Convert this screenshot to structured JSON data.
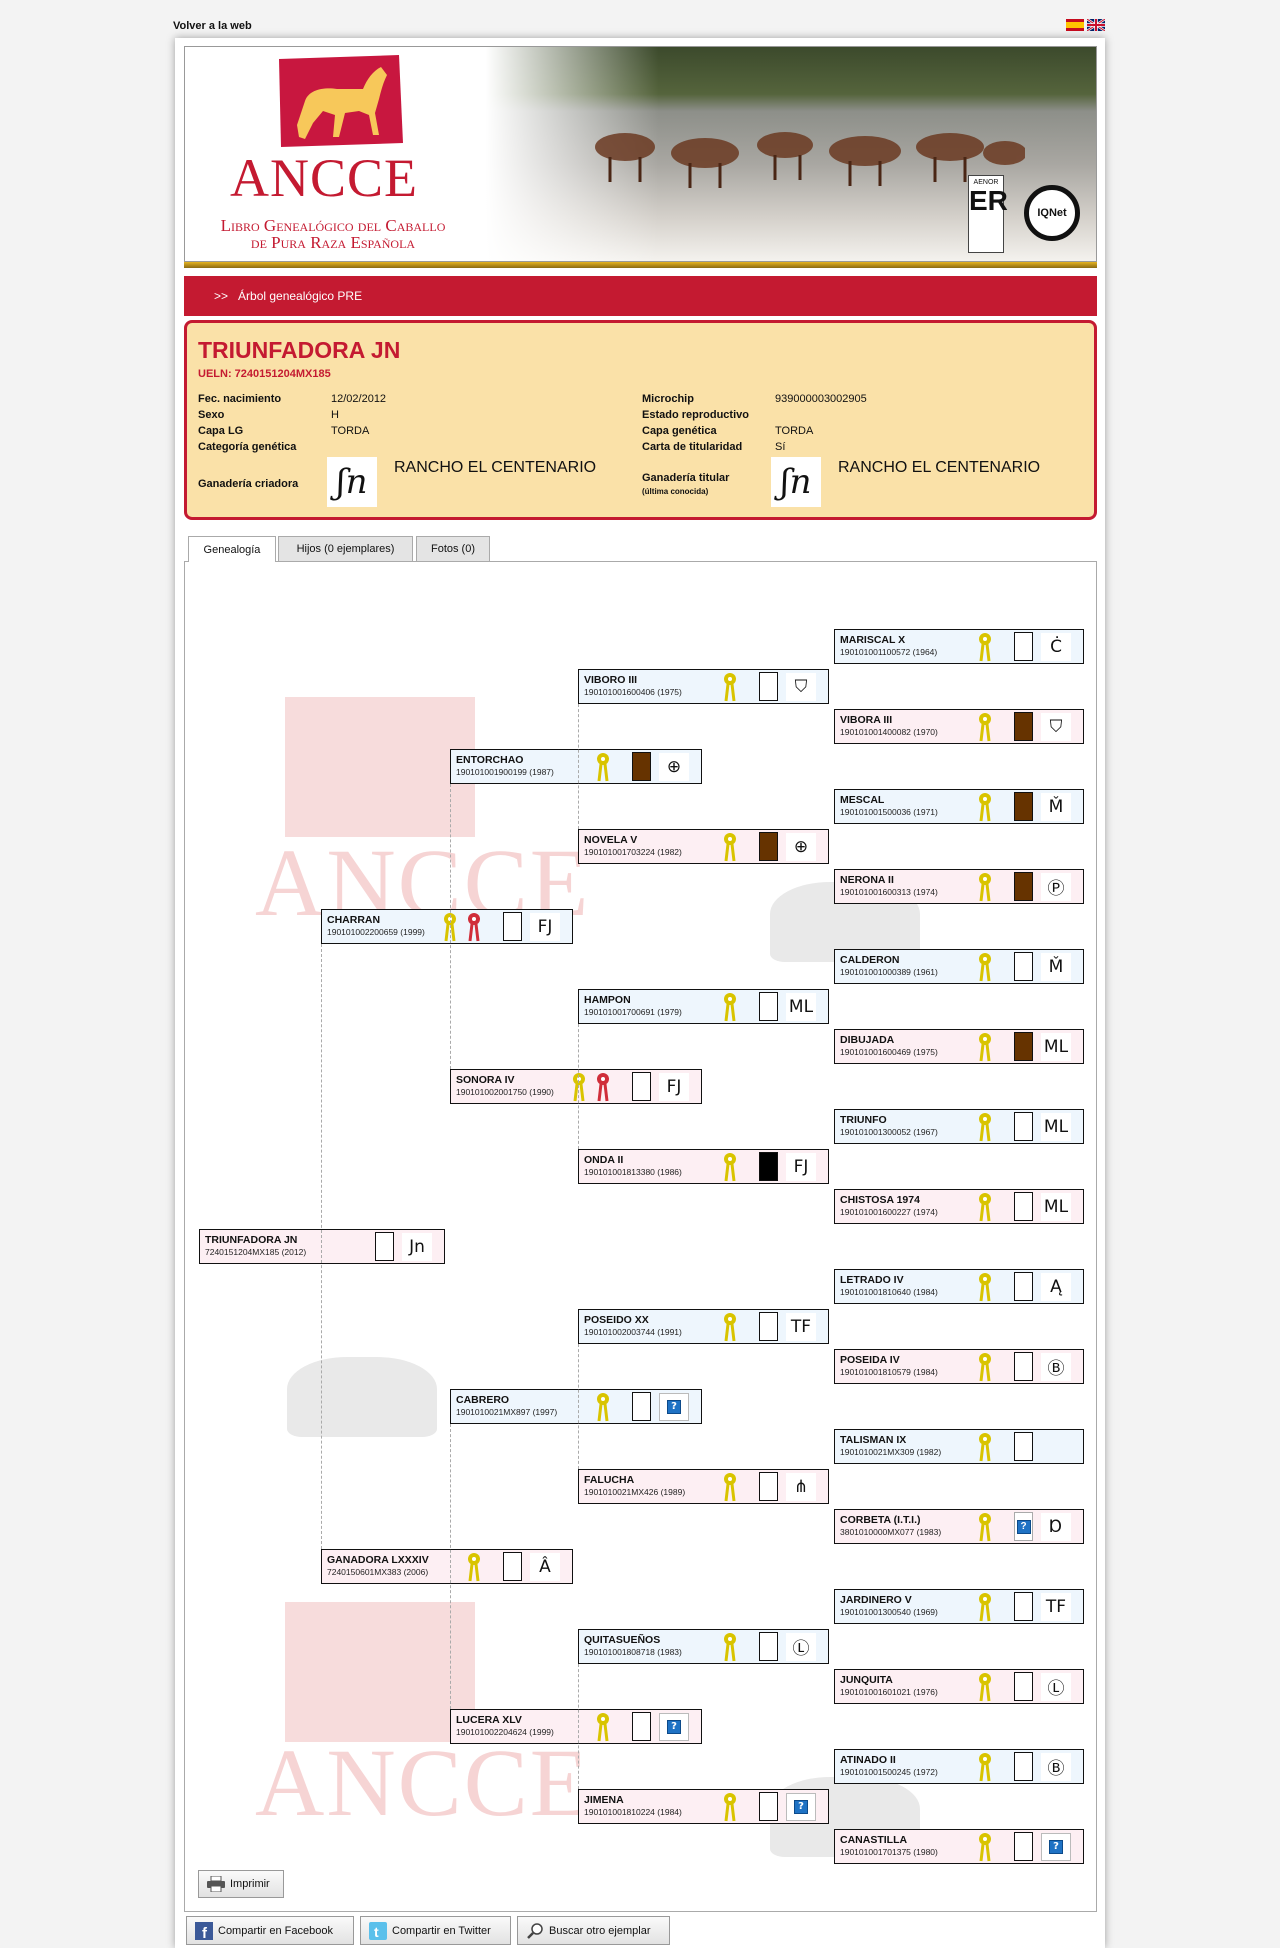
{
  "top": {
    "back_link": "Volver a la web",
    "languages": [
      "es-flag-icon",
      "uk-flag-icon"
    ]
  },
  "banner": {
    "logo_text": "ANCCE",
    "subtitle_line1": "Libro Genealógico del Caballo",
    "subtitle_line2": "de Pura Raza Española",
    "cert1": "AENOR",
    "cert2": "IQNet",
    "brand_color": "#c41a31"
  },
  "breadcrumb": {
    "sep": ">>",
    "label": "Árbol genealógico PRE"
  },
  "horse": {
    "name": "TRIUNFADORA JN",
    "ueln": "UELN: 7240151204MX185",
    "fields_left": [
      {
        "label": "Fec. nacimiento",
        "value": "12/02/2012"
      },
      {
        "label": "Sexo",
        "value": "H"
      },
      {
        "label": "Capa LG",
        "value": "TORDA"
      },
      {
        "label": "Categoría genética",
        "value": ""
      }
    ],
    "fields_right": [
      {
        "label": "Microchip",
        "value": "939000003002905"
      },
      {
        "label": "Estado reproductivo",
        "value": ""
      },
      {
        "label": "Capa genética",
        "value": "TORDA"
      },
      {
        "label": "Carta de titularidad",
        "value": "Sí"
      }
    ],
    "breeder": {
      "label": "Ganadería criadora",
      "name": "RANCHO EL CENTENARIO"
    },
    "owner": {
      "label": "Ganadería titular",
      "note": "(última conocida)",
      "name": "RANCHO EL CENTENARIO"
    }
  },
  "tabs": [
    {
      "label": "Genealogía",
      "active": true
    },
    {
      "label": "Hijos (0 ejemplares)",
      "active": false
    },
    {
      "label": "Fotos (0)",
      "active": false
    }
  ],
  "colors": {
    "male_bg": "#eef6fd",
    "female_bg": "#fdeff3",
    "coat_brown": "#663300",
    "coat_black": "#000000",
    "coat_white": "#ffffff",
    "ribbon_yellow": "#d9c400",
    "ribbon_red": "#d02e3a"
  },
  "pedigree": [
    [
      {
        "name": "TRIUNFADORA JN",
        "reg": "7240151204MX185",
        "year": "2012",
        "sex": "f",
        "coat": "white",
        "brand": "Jn",
        "ribbons": []
      }
    ],
    [
      {
        "name": "CHARRAN",
        "reg": "190101002200659",
        "year": "1999",
        "sex": "m",
        "coat": "white",
        "brand": "FJ",
        "ribbons": [
          "yellow",
          "red"
        ]
      },
      {
        "name": "GANADORA LXXXIV",
        "reg": "7240150601MX383",
        "year": "2006",
        "sex": "f",
        "coat": "white",
        "brand": "Â",
        "ribbons": [
          "yellow"
        ]
      }
    ],
    [
      {
        "name": "ENTORCHAO",
        "reg": "190101001900199",
        "year": "1987",
        "sex": "m",
        "coat": "brown",
        "brand": "⊕",
        "ribbons": [
          "yellow"
        ]
      },
      {
        "name": "SONORA IV",
        "reg": "190101002001750",
        "year": "1990",
        "sex": "f",
        "coat": "white",
        "brand": "FJ",
        "ribbons": [
          "yellow",
          "red"
        ]
      },
      {
        "name": "CABRERO",
        "reg": "1901010021MX897",
        "year": "1997",
        "sex": "m",
        "coat": "white",
        "brand": "?",
        "ribbons": [
          "yellow"
        ]
      },
      {
        "name": "LUCERA XLV",
        "reg": "190101002204624",
        "year": "1999",
        "sex": "f",
        "coat": "white",
        "brand": "?",
        "ribbons": [
          "yellow"
        ]
      }
    ],
    [
      {
        "name": "VIBORO III",
        "reg": "190101001600406",
        "year": "1975",
        "sex": "m",
        "coat": "white",
        "brand": "⛉",
        "ribbons": [
          "yellow"
        ]
      },
      {
        "name": "NOVELA V",
        "reg": "190101001703224",
        "year": "1982",
        "sex": "f",
        "coat": "brown",
        "brand": "⊕",
        "ribbons": [
          "yellow"
        ]
      },
      {
        "name": "HAMPON",
        "reg": "190101001700691",
        "year": "1979",
        "sex": "m",
        "coat": "white",
        "brand": "ML",
        "ribbons": [
          "yellow"
        ]
      },
      {
        "name": "ONDA II",
        "reg": "190101001813380",
        "year": "1986",
        "sex": "f",
        "coat": "black",
        "brand": "FJ",
        "ribbons": [
          "yellow"
        ]
      },
      {
        "name": "POSEIDO XX",
        "reg": "190101002003744",
        "year": "1991",
        "sex": "m",
        "coat": "white",
        "brand": "TF",
        "ribbons": [
          "yellow"
        ]
      },
      {
        "name": "FALUCHA",
        "reg": "1901010021MX426",
        "year": "1989",
        "sex": "f",
        "coat": "white",
        "brand": "⋔",
        "ribbons": [
          "yellow"
        ]
      },
      {
        "name": "QUITASUEÑOS",
        "reg": "190101001808718",
        "year": "1983",
        "sex": "m",
        "coat": "white",
        "brand": "Ⓛ",
        "ribbons": [
          "yellow"
        ]
      },
      {
        "name": "JIMENA",
        "reg": "190101001810224",
        "year": "1984",
        "sex": "f",
        "coat": "white",
        "brand": "?",
        "ribbons": [
          "yellow"
        ]
      }
    ],
    [
      {
        "name": "MARISCAL X",
        "reg": "190101001100572",
        "year": "1964",
        "sex": "m",
        "coat": "white",
        "brand": "Ċ",
        "ribbons": [
          "yellow"
        ]
      },
      {
        "name": "VIBORA III",
        "reg": "190101001400082",
        "year": "1970",
        "sex": "f",
        "coat": "brown",
        "brand": "⛉",
        "ribbons": [
          "yellow"
        ]
      },
      {
        "name": "MESCAL",
        "reg": "190101001500036",
        "year": "1971",
        "sex": "m",
        "coat": "brown",
        "brand": "M̌",
        "ribbons": [
          "yellow"
        ]
      },
      {
        "name": "NERONA II",
        "reg": "190101001600313",
        "year": "1974",
        "sex": "f",
        "coat": "brown",
        "brand": "Ⓟ",
        "ribbons": [
          "yellow"
        ]
      },
      {
        "name": "CALDERON",
        "reg": "190101001000389",
        "year": "1961",
        "sex": "m",
        "coat": "white",
        "brand": "M̌",
        "ribbons": [
          "yellow"
        ]
      },
      {
        "name": "DIBUJADA",
        "reg": "190101001600469",
        "year": "1975",
        "sex": "f",
        "coat": "brown",
        "brand": "ML",
        "ribbons": [
          "yellow"
        ]
      },
      {
        "name": "TRIUNFO",
        "reg": "190101001300052",
        "year": "1967",
        "sex": "m",
        "coat": "white",
        "brand": "ML",
        "ribbons": [
          "yellow"
        ]
      },
      {
        "name": "CHISTOSA 1974",
        "reg": "190101001600227",
        "year": "1974",
        "sex": "f",
        "coat": "white",
        "brand": "ML",
        "ribbons": [
          "yellow"
        ]
      },
      {
        "name": "LETRADO IV",
        "reg": "190101001810640",
        "year": "1984",
        "sex": "m",
        "coat": "white",
        "brand": "Ą",
        "ribbons": [
          "yellow"
        ]
      },
      {
        "name": "POSEIDA IV",
        "reg": "190101001810579",
        "year": "1984",
        "sex": "f",
        "coat": "white",
        "brand": "Ⓑ",
        "ribbons": [
          "yellow"
        ]
      },
      {
        "name": "TALISMAN IX",
        "reg": "1901010021MX309",
        "year": "1982",
        "sex": "m",
        "coat": "white",
        "brand": "",
        "ribbons": [
          "yellow"
        ]
      },
      {
        "name": "CORBETA (I.T.I.)",
        "reg": "3801010000MX077",
        "year": "1983",
        "sex": "f",
        "coat": "unknown",
        "brand": "Ɒ",
        "ribbons": [
          "yellow"
        ]
      },
      {
        "name": "JARDINERO V",
        "reg": "190101001300540",
        "year": "1969",
        "sex": "m",
        "coat": "white",
        "brand": "TF",
        "ribbons": [
          "yellow"
        ]
      },
      {
        "name": "JUNQUITA",
        "reg": "190101001601021",
        "year": "1976",
        "sex": "f",
        "coat": "white",
        "brand": "Ⓛ",
        "ribbons": [
          "yellow"
        ]
      },
      {
        "name": "ATINADO II",
        "reg": "190101001500245",
        "year": "1972",
        "sex": "m",
        "coat": "white",
        "brand": "Ⓑ",
        "ribbons": [
          "yellow"
        ]
      },
      {
        "name": "CANASTILLA",
        "reg": "190101001701375",
        "year": "1980",
        "sex": "f",
        "coat": "white",
        "brand": "?",
        "ribbons": [
          "yellow"
        ]
      }
    ]
  ],
  "actions": {
    "print": "Imprimir",
    "facebook": "Compartir en Facebook",
    "twitter": "Compartir en Twitter",
    "search": "Buscar otro ejemplar"
  }
}
